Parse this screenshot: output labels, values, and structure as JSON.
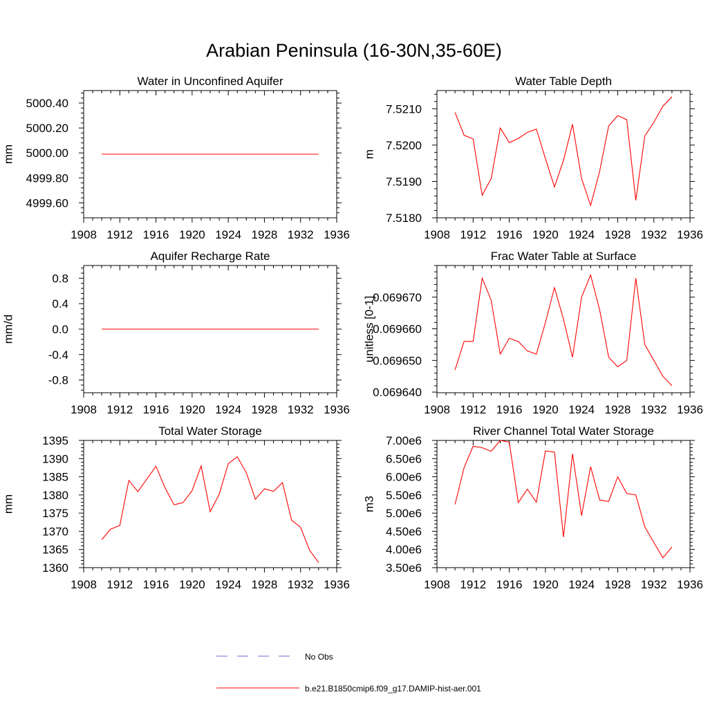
{
  "page": {
    "title": "Arabian Peninsula (16-30N,35-60E)"
  },
  "legend": {
    "entries": [
      {
        "label": "No Obs",
        "color": "#6a6ad0",
        "dash": true
      },
      {
        "label": "b.e21.B1850cmip6.f09_g17.DAMIP-hist-aer.001",
        "color": "#ff0000",
        "dash": false
      }
    ]
  },
  "chart_data": [
    {
      "type": "line",
      "title": "Water in Unconfined Aquifer",
      "ylabel": "mm",
      "xlim": [
        1908,
        1936
      ],
      "xticks": [
        1908,
        1912,
        1916,
        1920,
        1924,
        1928,
        1932,
        1936
      ],
      "ylim": [
        4999.48,
        5000.5
      ],
      "yticks": [
        4999.6,
        4999.8,
        5000.0,
        5000.2,
        5000.4
      ],
      "ytick_labels": [
        "4999.60",
        "4999.80",
        "5000.00",
        "5000.20",
        "5000.40"
      ],
      "series": [
        {
          "color": "#ff0000",
          "x": [
            1910,
            1911,
            1912,
            1913,
            1914,
            1915,
            1916,
            1917,
            1918,
            1919,
            1920,
            1921,
            1922,
            1923,
            1924,
            1925,
            1926,
            1927,
            1928,
            1929,
            1930,
            1931,
            1932,
            1933,
            1934
          ],
          "values": [
            4999.99,
            4999.99,
            4999.99,
            4999.99,
            4999.99,
            4999.99,
            4999.99,
            4999.99,
            4999.99,
            4999.99,
            4999.99,
            4999.99,
            4999.99,
            4999.99,
            4999.99,
            4999.99,
            4999.99,
            4999.99,
            4999.99,
            4999.99,
            4999.99,
            4999.99,
            4999.99,
            4999.99,
            4999.99
          ]
        }
      ]
    },
    {
      "type": "line",
      "title": "Water Table Depth",
      "ylabel": "m",
      "xlim": [
        1908,
        1936
      ],
      "xticks": [
        1908,
        1912,
        1916,
        1920,
        1924,
        1928,
        1932,
        1936
      ],
      "ylim": [
        7.518,
        7.5215
      ],
      "yticks": [
        7.518,
        7.519,
        7.52,
        7.521
      ],
      "ytick_labels": [
        "7.5180",
        "7.5190",
        "7.5200",
        "7.5210"
      ],
      "series": [
        {
          "color": "#ff0000",
          "x": [
            1910,
            1911,
            1912,
            1913,
            1914,
            1915,
            1916,
            1917,
            1918,
            1919,
            1920,
            1921,
            1922,
            1923,
            1924,
            1925,
            1926,
            1927,
            1928,
            1929,
            1930,
            1931,
            1932,
            1933,
            1934
          ],
          "values": [
            7.5209,
            7.52027,
            7.52017,
            7.51862,
            7.51908,
            7.52047,
            7.52007,
            7.52018,
            7.52035,
            7.52044,
            7.51963,
            7.51885,
            7.51958,
            7.52057,
            7.51908,
            7.51834,
            7.51928,
            7.52053,
            7.52081,
            7.5207,
            7.51848,
            7.52025,
            7.52063,
            7.52107,
            7.52133
          ]
        }
      ]
    },
    {
      "type": "line",
      "title": "Aquifer Recharge Rate",
      "ylabel": "mm/d",
      "xlim": [
        1908,
        1936
      ],
      "xticks": [
        1908,
        1912,
        1916,
        1920,
        1924,
        1928,
        1932,
        1936
      ],
      "ylim": [
        -1.0,
        1.0
      ],
      "yticks": [
        -0.8,
        -0.4,
        0.0,
        0.4,
        0.8
      ],
      "ytick_labels": [
        "-0.8",
        "-0.4",
        "0.0",
        "0.4",
        "0.8"
      ],
      "series": [
        {
          "color": "#ff0000",
          "x": [
            1910,
            1911,
            1912,
            1913,
            1914,
            1915,
            1916,
            1917,
            1918,
            1919,
            1920,
            1921,
            1922,
            1923,
            1924,
            1925,
            1926,
            1927,
            1928,
            1929,
            1930,
            1931,
            1932,
            1933,
            1934
          ],
          "values": [
            0,
            0,
            0,
            0,
            0,
            0,
            0,
            0,
            0,
            0,
            0,
            0,
            0,
            0,
            0,
            0,
            0,
            0,
            0,
            0,
            0,
            0,
            0,
            0,
            0
          ]
        }
      ]
    },
    {
      "type": "line",
      "title": "Frac Water Table at Surface",
      "ylabel": "unitless [0-1]",
      "xlim": [
        1908,
        1936
      ],
      "xticks": [
        1908,
        1912,
        1916,
        1920,
        1924,
        1928,
        1932,
        1936
      ],
      "ylim": [
        0.0696398,
        0.06968
      ],
      "yticks": [
        0.06964,
        0.06965,
        0.06966,
        0.06967
      ],
      "ytick_labels": [
        "0.069640",
        "0.069650",
        "0.069660",
        "0.069670"
      ],
      "series": [
        {
          "color": "#ff0000",
          "x": [
            1910,
            1911,
            1912,
            1913,
            1914,
            1915,
            1916,
            1917,
            1918,
            1919,
            1920,
            1921,
            1922,
            1923,
            1924,
            1925,
            1926,
            1927,
            1928,
            1929,
            1930,
            1931,
            1932,
            1933,
            1934
          ],
          "values": [
            0.069647,
            0.069656,
            0.069656,
            0.069676,
            0.069669,
            0.069652,
            0.069657,
            0.069656,
            0.069653,
            0.069652,
            0.069662,
            0.069673,
            0.069663,
            0.069651,
            0.06967,
            0.069677,
            0.069666,
            0.069651,
            0.069648,
            0.06965,
            0.069676,
            0.069655,
            0.06965,
            0.069645,
            0.069642
          ]
        }
      ]
    },
    {
      "type": "line",
      "title": "Total Water Storage",
      "ylabel": "mm",
      "xlim": [
        1908,
        1936
      ],
      "xticks": [
        1908,
        1912,
        1916,
        1920,
        1924,
        1928,
        1932,
        1936
      ],
      "ylim": [
        1360,
        1395
      ],
      "yticks": [
        1360,
        1365,
        1370,
        1375,
        1380,
        1385,
        1390,
        1395
      ],
      "ytick_labels": [
        "1360",
        "1365",
        "1370",
        "1375",
        "1380",
        "1385",
        "1390",
        "1395"
      ],
      "series": [
        {
          "color": "#ff0000",
          "x": [
            1910,
            1911,
            1912,
            1913,
            1914,
            1915,
            1916,
            1917,
            1918,
            1919,
            1920,
            1921,
            1922,
            1923,
            1924,
            1925,
            1926,
            1927,
            1928,
            1929,
            1930,
            1931,
            1932,
            1933,
            1934
          ],
          "values": [
            1367.7,
            1370.6,
            1371.6,
            1384.0,
            1380.9,
            1384.4,
            1387.9,
            1382.0,
            1377.3,
            1377.9,
            1381.2,
            1388.0,
            1375.4,
            1380.2,
            1388.6,
            1390.5,
            1386.1,
            1378.8,
            1381.7,
            1381.0,
            1383.4,
            1373.1,
            1371.1,
            1364.8,
            1361.4
          ]
        }
      ]
    },
    {
      "type": "line",
      "title": "River Channel Total Water Storage",
      "ylabel": "m3",
      "xlim": [
        1908,
        1936
      ],
      "xticks": [
        1908,
        1912,
        1916,
        1920,
        1924,
        1928,
        1932,
        1936
      ],
      "ylim": [
        3500000,
        7000000
      ],
      "yticks": [
        3500000,
        4000000,
        4500000,
        5000000,
        5500000,
        6000000,
        6500000,
        7000000
      ],
      "ytick_labels": [
        "3.50e6",
        "4.00e6",
        "4.50e6",
        "5.00e6",
        "5.50e6",
        "6.00e6",
        "6.50e6",
        "7.00e6"
      ],
      "series": [
        {
          "color": "#ff0000",
          "x": [
            1910,
            1911,
            1912,
            1913,
            1914,
            1915,
            1916,
            1917,
            1918,
            1919,
            1920,
            1921,
            1922,
            1923,
            1924,
            1925,
            1926,
            1927,
            1928,
            1929,
            1930,
            1931,
            1932,
            1933,
            1934
          ],
          "values": [
            5240000,
            6250000,
            6840000,
            6800000,
            6700000,
            7000000,
            6950000,
            5290000,
            5660000,
            5300000,
            6710000,
            6680000,
            4340000,
            6630000,
            4930000,
            6280000,
            5360000,
            5320000,
            6000000,
            5540000,
            5500000,
            4620000,
            4190000,
            3770000,
            4070000
          ]
        }
      ]
    }
  ]
}
